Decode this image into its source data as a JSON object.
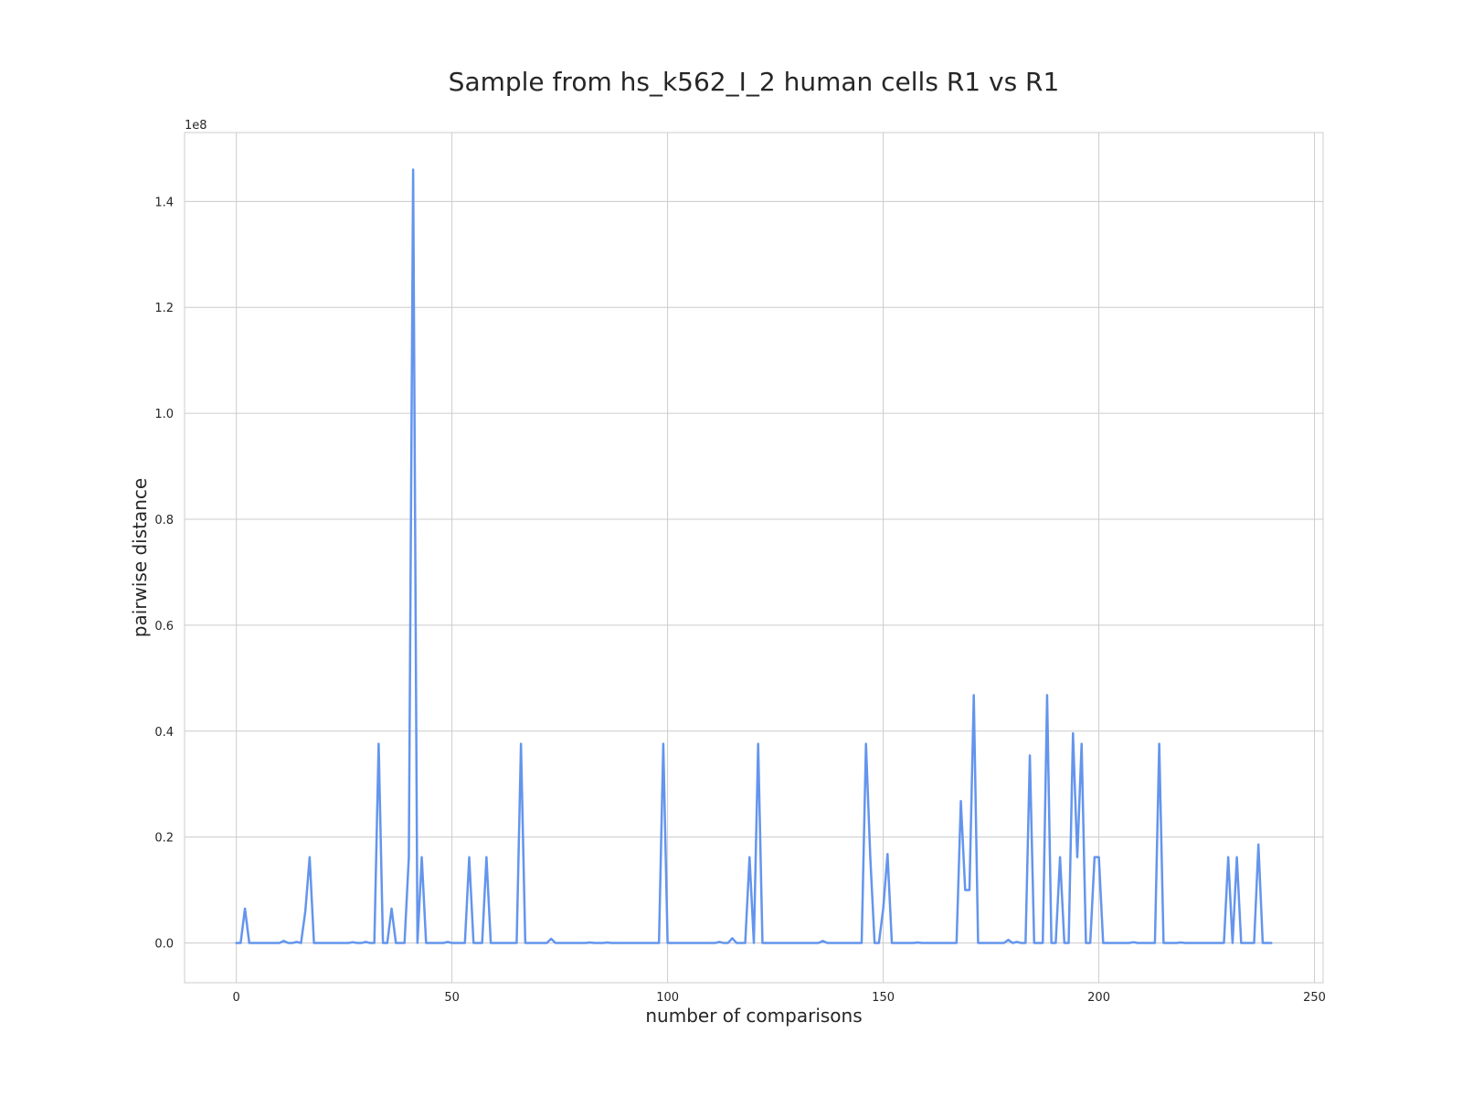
{
  "chart_data": {
    "type": "line",
    "title": "Sample from hs_k562_I_2 human cells R1 vs R1",
    "xlabel": "number of comparisons",
    "ylabel": "pairwise distance",
    "y_offset_label": "1e8",
    "xlim": [
      -12,
      252
    ],
    "ylim": [
      -7500000,
      153000000
    ],
    "xticks": [
      0,
      50,
      100,
      150,
      200,
      250
    ],
    "xtick_labels": [
      "0",
      "50",
      "100",
      "150",
      "200",
      "250"
    ],
    "yticks": [
      0,
      20000000,
      40000000,
      60000000,
      80000000,
      100000000,
      120000000,
      140000000
    ],
    "ytick_labels": [
      "0.0",
      "0.2",
      "0.4",
      "0.6",
      "0.8",
      "1.0",
      "1.2",
      "1.4"
    ],
    "grid": true,
    "line_color": "#6495ed",
    "series": [
      {
        "points": [
          [
            0,
            0
          ],
          [
            1,
            0
          ],
          [
            2,
            6500000
          ],
          [
            3,
            0
          ],
          [
            4,
            0
          ],
          [
            5,
            0
          ],
          [
            6,
            0
          ],
          [
            7,
            0
          ],
          [
            8,
            0
          ],
          [
            9,
            0
          ],
          [
            10,
            0
          ],
          [
            11,
            400000
          ],
          [
            12,
            0
          ],
          [
            13,
            0
          ],
          [
            14,
            200000
          ],
          [
            15,
            0
          ],
          [
            16,
            6000000
          ],
          [
            17,
            16200000
          ],
          [
            18,
            0
          ],
          [
            19,
            0
          ],
          [
            20,
            0
          ],
          [
            21,
            0
          ],
          [
            22,
            0
          ],
          [
            23,
            0
          ],
          [
            24,
            0
          ],
          [
            25,
            0
          ],
          [
            26,
            0
          ],
          [
            27,
            150000
          ],
          [
            28,
            0
          ],
          [
            29,
            0
          ],
          [
            30,
            200000
          ],
          [
            31,
            0
          ],
          [
            32,
            0
          ],
          [
            33,
            37600000
          ],
          [
            34,
            0
          ],
          [
            35,
            0
          ],
          [
            36,
            6500000
          ],
          [
            37,
            0
          ],
          [
            38,
            0
          ],
          [
            39,
            0
          ],
          [
            40,
            16200000
          ],
          [
            41,
            146000000
          ],
          [
            42,
            0
          ],
          [
            43,
            16200000
          ],
          [
            44,
            0
          ],
          [
            45,
            0
          ],
          [
            46,
            0
          ],
          [
            47,
            0
          ],
          [
            48,
            0
          ],
          [
            49,
            200000
          ],
          [
            50,
            0
          ],
          [
            51,
            0
          ],
          [
            52,
            0
          ],
          [
            53,
            0
          ],
          [
            54,
            16200000
          ],
          [
            55,
            0
          ],
          [
            56,
            0
          ],
          [
            57,
            0
          ],
          [
            58,
            16200000
          ],
          [
            59,
            0
          ],
          [
            60,
            0
          ],
          [
            61,
            0
          ],
          [
            62,
            0
          ],
          [
            63,
            0
          ],
          [
            64,
            0
          ],
          [
            65,
            0
          ],
          [
            66,
            37600000
          ],
          [
            67,
            0
          ],
          [
            68,
            0
          ],
          [
            69,
            0
          ],
          [
            70,
            0
          ],
          [
            71,
            0
          ],
          [
            72,
            0
          ],
          [
            73,
            800000
          ],
          [
            74,
            0
          ],
          [
            75,
            0
          ],
          [
            76,
            0
          ],
          [
            77,
            0
          ],
          [
            78,
            0
          ],
          [
            79,
            0
          ],
          [
            80,
            0
          ],
          [
            81,
            0
          ],
          [
            82,
            100000
          ],
          [
            83,
            0
          ],
          [
            84,
            0
          ],
          [
            85,
            0
          ],
          [
            86,
            100000
          ],
          [
            87,
            0
          ],
          [
            88,
            0
          ],
          [
            89,
            0
          ],
          [
            90,
            0
          ],
          [
            91,
            0
          ],
          [
            92,
            0
          ],
          [
            93,
            0
          ],
          [
            94,
            0
          ],
          [
            95,
            0
          ],
          [
            96,
            0
          ],
          [
            97,
            0
          ],
          [
            98,
            0
          ],
          [
            99,
            37600000
          ],
          [
            100,
            0
          ],
          [
            101,
            0
          ],
          [
            102,
            0
          ],
          [
            103,
            0
          ],
          [
            104,
            0
          ],
          [
            105,
            0
          ],
          [
            106,
            0
          ],
          [
            107,
            0
          ],
          [
            108,
            0
          ],
          [
            109,
            0
          ],
          [
            110,
            0
          ],
          [
            111,
            0
          ],
          [
            112,
            200000
          ],
          [
            113,
            0
          ],
          [
            114,
            0
          ],
          [
            115,
            900000
          ],
          [
            116,
            0
          ],
          [
            117,
            0
          ],
          [
            118,
            0
          ],
          [
            119,
            16200000
          ],
          [
            120,
            0
          ],
          [
            121,
            37600000
          ],
          [
            122,
            0
          ],
          [
            123,
            0
          ],
          [
            124,
            0
          ],
          [
            125,
            0
          ],
          [
            126,
            0
          ],
          [
            127,
            0
          ],
          [
            128,
            0
          ],
          [
            129,
            0
          ],
          [
            130,
            0
          ],
          [
            131,
            0
          ],
          [
            132,
            0
          ],
          [
            133,
            0
          ],
          [
            134,
            0
          ],
          [
            135,
            0
          ],
          [
            136,
            400000
          ],
          [
            137,
            0
          ],
          [
            138,
            0
          ],
          [
            139,
            0
          ],
          [
            140,
            0
          ],
          [
            141,
            0
          ],
          [
            142,
            0
          ],
          [
            143,
            0
          ],
          [
            144,
            0
          ],
          [
            145,
            0
          ],
          [
            146,
            37600000
          ],
          [
            147,
            16200000
          ],
          [
            148,
            0
          ],
          [
            149,
            0
          ],
          [
            150,
            6500000
          ],
          [
            151,
            16800000
          ],
          [
            152,
            0
          ],
          [
            153,
            0
          ],
          [
            154,
            0
          ],
          [
            155,
            0
          ],
          [
            156,
            0
          ],
          [
            157,
            0
          ],
          [
            158,
            100000
          ],
          [
            159,
            0
          ],
          [
            160,
            0
          ],
          [
            161,
            0
          ],
          [
            162,
            0
          ],
          [
            163,
            0
          ],
          [
            164,
            0
          ],
          [
            165,
            0
          ],
          [
            166,
            0
          ],
          [
            167,
            0
          ],
          [
            168,
            26800000
          ],
          [
            169,
            10000000
          ],
          [
            170,
            10000000
          ],
          [
            171,
            46800000
          ],
          [
            172,
            0
          ],
          [
            173,
            0
          ],
          [
            174,
            0
          ],
          [
            175,
            0
          ],
          [
            176,
            0
          ],
          [
            177,
            0
          ],
          [
            178,
            0
          ],
          [
            179,
            600000
          ],
          [
            180,
            0
          ],
          [
            181,
            200000
          ],
          [
            182,
            0
          ],
          [
            183,
            0
          ],
          [
            184,
            35400000
          ],
          [
            185,
            0
          ],
          [
            186,
            0
          ],
          [
            187,
            0
          ],
          [
            188,
            46800000
          ],
          [
            189,
            0
          ],
          [
            190,
            0
          ],
          [
            191,
            16200000
          ],
          [
            192,
            0
          ],
          [
            193,
            0
          ],
          [
            194,
            39600000
          ],
          [
            195,
            16200000
          ],
          [
            196,
            37600000
          ],
          [
            197,
            0
          ],
          [
            198,
            0
          ],
          [
            199,
            16200000
          ],
          [
            200,
            16200000
          ],
          [
            201,
            0
          ],
          [
            202,
            0
          ],
          [
            203,
            0
          ],
          [
            204,
            0
          ],
          [
            205,
            0
          ],
          [
            206,
            0
          ],
          [
            207,
            0
          ],
          [
            208,
            150000
          ],
          [
            209,
            0
          ],
          [
            210,
            0
          ],
          [
            211,
            0
          ],
          [
            212,
            0
          ],
          [
            213,
            0
          ],
          [
            214,
            37600000
          ],
          [
            215,
            0
          ],
          [
            216,
            0
          ],
          [
            217,
            0
          ],
          [
            218,
            0
          ],
          [
            219,
            100000
          ],
          [
            220,
            0
          ],
          [
            221,
            0
          ],
          [
            222,
            0
          ],
          [
            223,
            0
          ],
          [
            224,
            0
          ],
          [
            225,
            0
          ],
          [
            226,
            0
          ],
          [
            227,
            0
          ],
          [
            228,
            0
          ],
          [
            229,
            0
          ],
          [
            230,
            16200000
          ],
          [
            231,
            0
          ],
          [
            232,
            16200000
          ],
          [
            233,
            0
          ],
          [
            234,
            0
          ],
          [
            235,
            0
          ],
          [
            236,
            0
          ],
          [
            237,
            18600000
          ],
          [
            238,
            0
          ],
          [
            239,
            0
          ],
          [
            240,
            0
          ]
        ]
      }
    ]
  }
}
